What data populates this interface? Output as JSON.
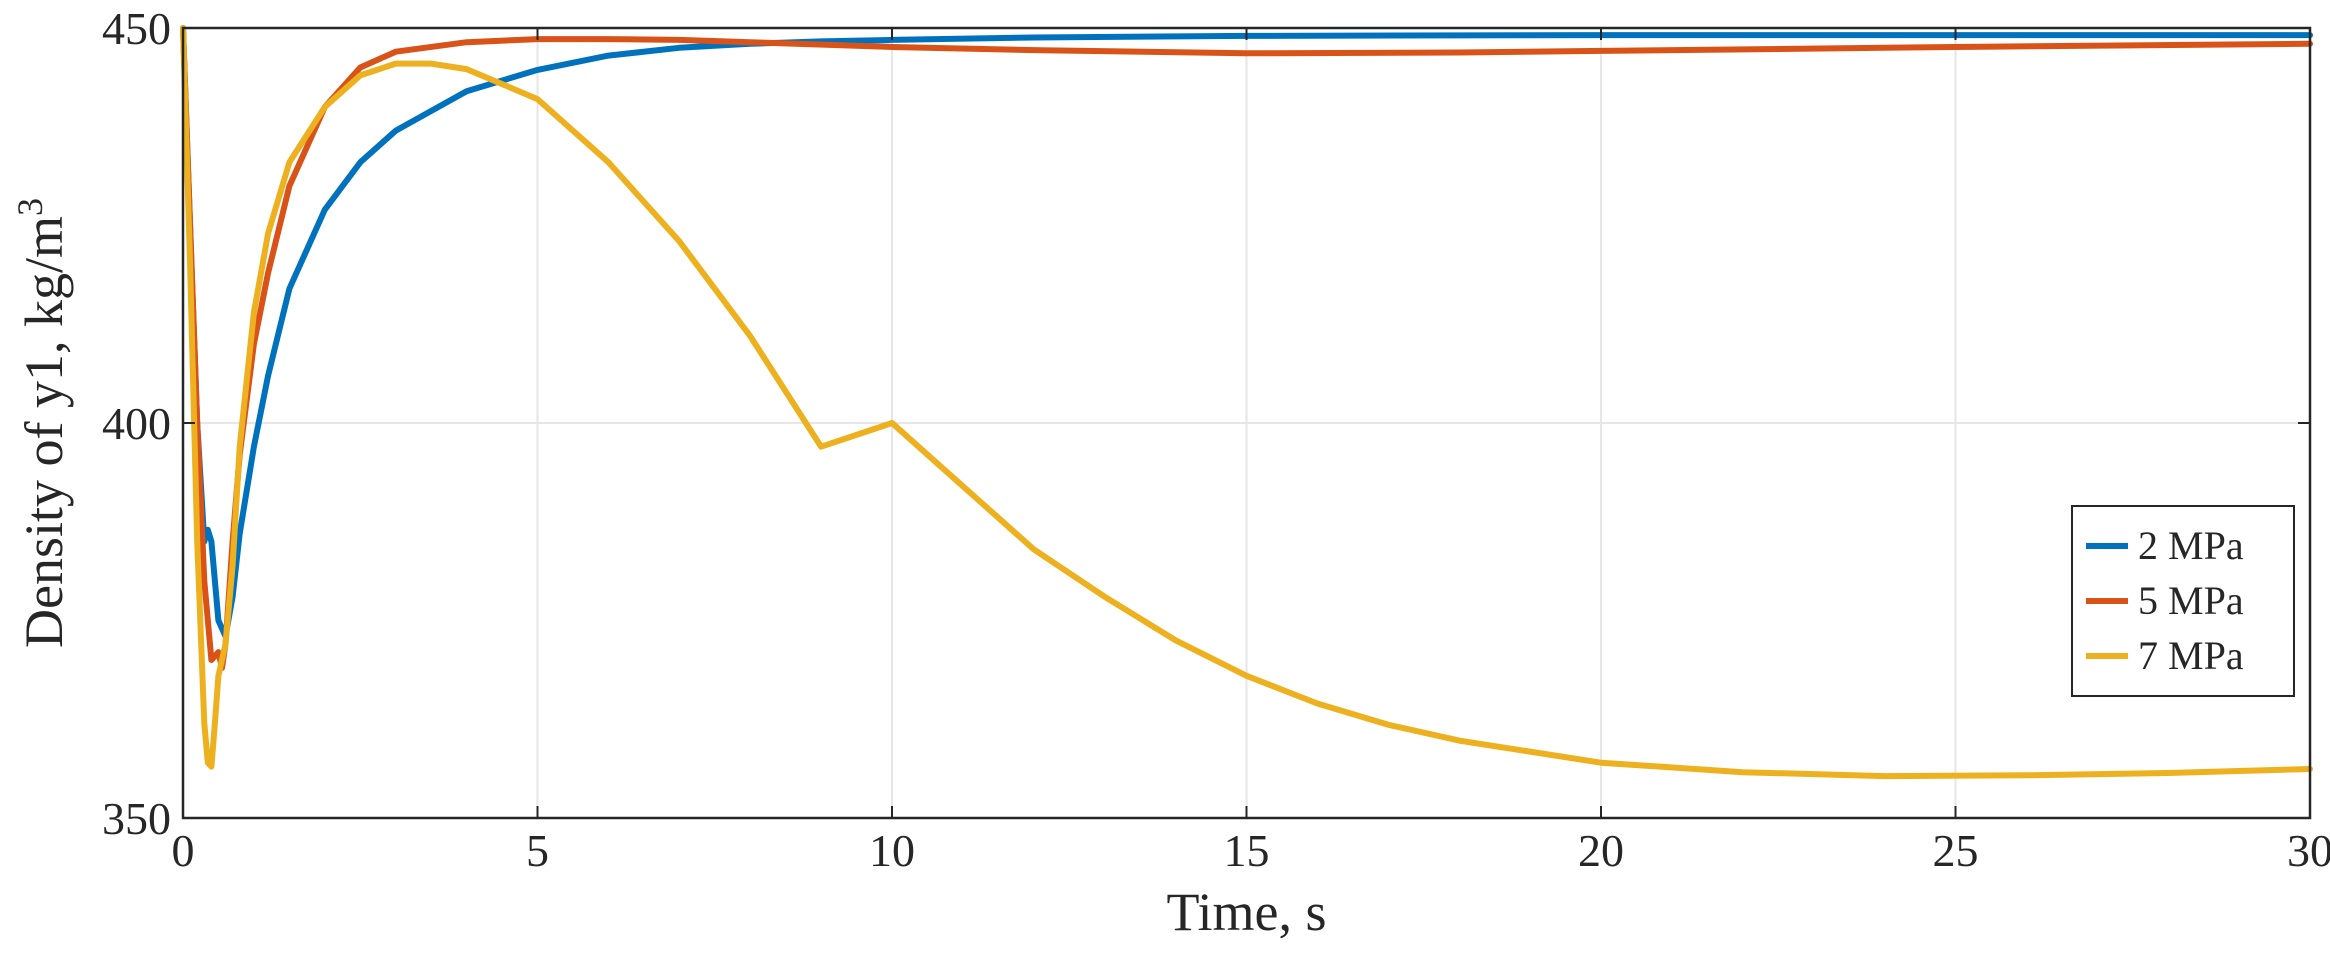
{
  "chart_data": {
    "type": "line",
    "title": "",
    "xlabel": "Time, s",
    "ylabel_main": "Density of y1, kg/m",
    "ylabel_superscript": "3",
    "xlim": [
      0,
      30
    ],
    "ylim": [
      350,
      450
    ],
    "xticks": [
      0,
      5,
      10,
      15,
      20,
      25,
      30
    ],
    "yticks": [
      350,
      400,
      450
    ],
    "xtick_labels": [
      "0",
      "5",
      "10",
      "15",
      "20",
      "25",
      "30"
    ],
    "ytick_labels": [
      "350",
      "400",
      "450"
    ],
    "grid": true,
    "legend_position": "right",
    "series": [
      {
        "name": "2 MPa",
        "color": "#0072BD",
        "x": [
          0,
          0.1,
          0.2,
          0.3,
          0.35,
          0.4,
          0.5,
          0.6,
          0.7,
          0.8,
          1.0,
          1.2,
          1.5,
          2.0,
          2.5,
          3.0,
          4.0,
          5.0,
          6.0,
          7.0,
          8.0,
          9.0,
          10,
          12,
          15,
          20,
          25,
          30
        ],
        "y": [
          450,
          425,
          400,
          385,
          386.5,
          385,
          375,
          373,
          378,
          386,
          397,
          406,
          417,
          427,
          433,
          437,
          442,
          444.7,
          446.5,
          447.5,
          448,
          448.3,
          448.5,
          448.8,
          449,
          449.1,
          449.1,
          449.1
        ]
      },
      {
        "name": "5 MPa",
        "color": "#D95319",
        "x": [
          0,
          0.1,
          0.2,
          0.3,
          0.4,
          0.5,
          0.55,
          0.6,
          0.7,
          0.8,
          1.0,
          1.2,
          1.5,
          2.0,
          2.5,
          3.0,
          4.0,
          5.0,
          6.0,
          7.0,
          8.0,
          10,
          12,
          15,
          18,
          20,
          25,
          30
        ],
        "y": [
          450,
          425,
          400,
          380,
          370,
          371,
          369,
          372,
          385,
          396,
          410,
          419,
          430,
          440,
          445,
          447,
          448.2,
          448.6,
          448.6,
          448.5,
          448.2,
          447.6,
          447.2,
          446.8,
          446.9,
          447.1,
          447.6,
          448
        ]
      },
      {
        "name": "7 MPa",
        "color": "#EDB120",
        "x": [
          0,
          0.1,
          0.2,
          0.3,
          0.35,
          0.4,
          0.45,
          0.5,
          0.6,
          0.7,
          0.8,
          1.0,
          1.2,
          1.5,
          2.0,
          2.5,
          3.0,
          3.5,
          4.0,
          5.0,
          6.0,
          7.0,
          8.0,
          9.0,
          10,
          11,
          12,
          13,
          14,
          15,
          16,
          17,
          18,
          20,
          22,
          24,
          26,
          28,
          30
        ],
        "y": [
          450,
          420,
          385,
          362,
          357,
          356.5,
          362,
          368,
          372,
          382,
          397,
          414,
          424,
          433,
          440,
          444,
          445.5,
          445.5,
          444.8,
          441,
          433,
          423,
          411,
          397,
          400,
          392,
          384,
          378,
          372.5,
          368,
          364.5,
          361.8,
          359.8,
          357,
          355.8,
          355.3,
          355.4,
          355.7,
          356.2
        ]
      }
    ]
  }
}
